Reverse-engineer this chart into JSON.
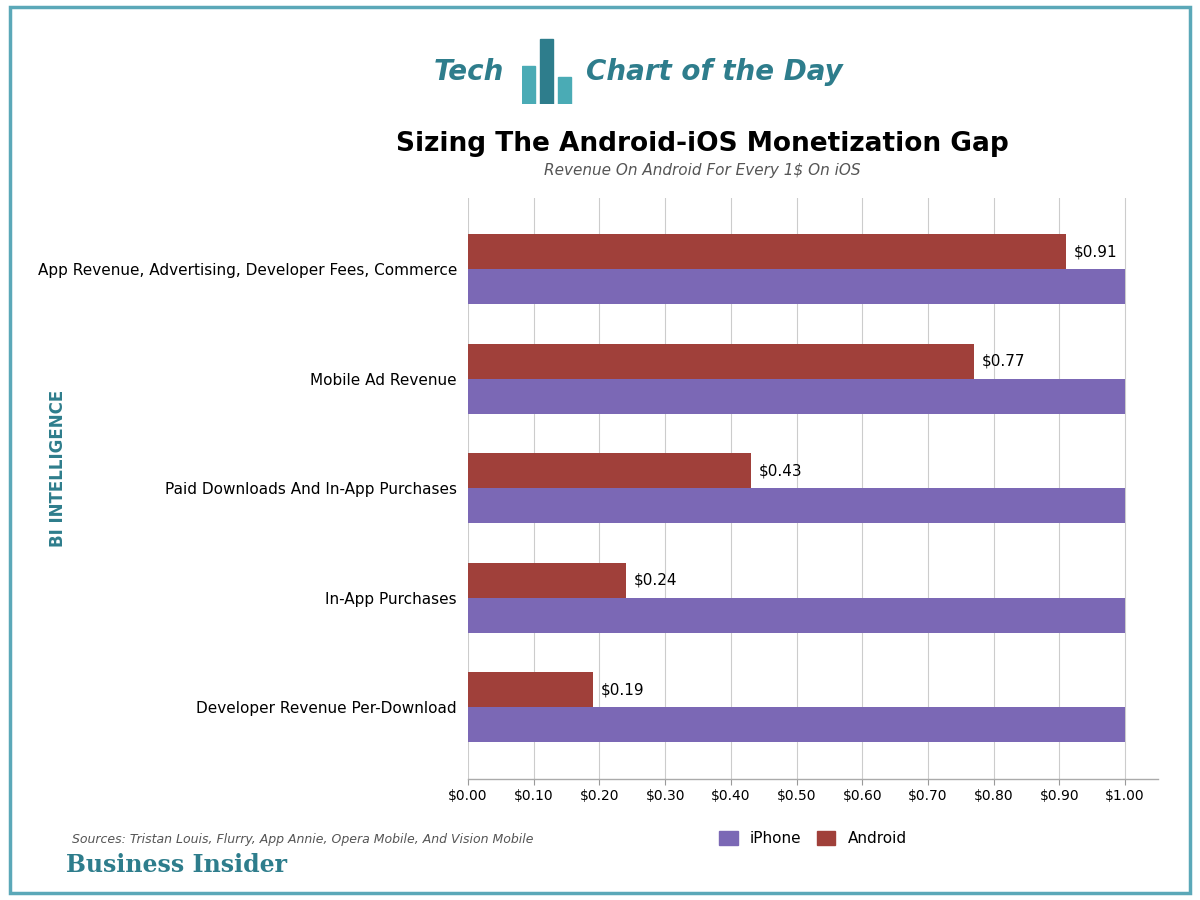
{
  "title": "Sizing The Android-iOS Monetization Gap",
  "subtitle": "Revenue On Android For Every 1$ On iOS",
  "categories": [
    "App Revenue, Advertising, Developer Fees, Commerce",
    "Mobile Ad Revenue",
    "Paid Downloads And In-App Purchases",
    "In-App Purchases",
    "Developer Revenue Per-Download"
  ],
  "iphone_values": [
    1.0,
    1.0,
    1.0,
    1.0,
    1.0
  ],
  "android_values": [
    0.91,
    0.77,
    0.43,
    0.24,
    0.19
  ],
  "android_labels": [
    "$0.91",
    "$0.77",
    "$0.43",
    "$0.24",
    "$0.19"
  ],
  "iphone_color": "#7B68B5",
  "android_color": "#A0403A",
  "xtick_labels": [
    "$0.00",
    "$0.10",
    "$0.20",
    "$0.30",
    "$0.40",
    "$0.50",
    "$0.60",
    "$0.70",
    "$0.80",
    "$0.90",
    "$1.00"
  ],
  "xtick_values": [
    0.0,
    0.1,
    0.2,
    0.3,
    0.4,
    0.5,
    0.6,
    0.7,
    0.8,
    0.9,
    1.0
  ],
  "header_text": "Tech",
  "header_text2": "Chart of the Day",
  "header_color": "#2E7D8C",
  "teal_light": "#4AABB5",
  "teal_dark": "#2E7D8C",
  "legend_labels": [
    "iPhone",
    "Android"
  ],
  "source_text": "Sources: Tristan Louis, Flurry, App Annie, Opera Mobile, And Vision Mobile",
  "bi_text": "Business Insider",
  "watermark_text": "BI INTELLIGENCE",
  "border_color": "#5BA8B8",
  "background_color": "#FFFFFF",
  "bar_height": 0.32
}
